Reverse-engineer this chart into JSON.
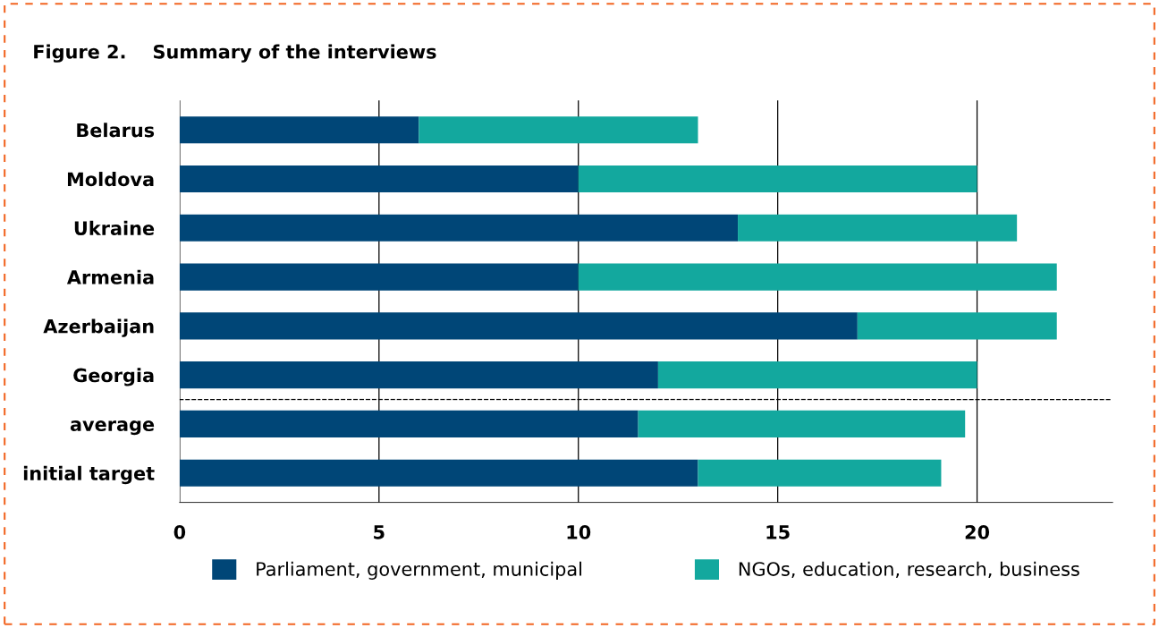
{
  "chart_data": {
    "type": "bar",
    "orientation": "horizontal",
    "stacked": true,
    "title": "Figure 2.    Summary of the interviews",
    "categories": [
      "Belarus",
      "Moldova",
      "Ukraine",
      "Armenia",
      "Azerbaijan",
      "Georgia",
      "average",
      "initial target"
    ],
    "series": [
      {
        "name": "Parliament, government, municipal",
        "color": "#004677",
        "values": [
          6,
          10,
          14,
          10,
          17,
          12,
          11.5,
          13
        ]
      },
      {
        "name": "NGOs, education, research, business",
        "color": "#13a89e",
        "values": [
          7,
          10,
          7,
          12,
          5,
          8,
          8.2,
          6.1
        ]
      }
    ],
    "xlim": [
      0,
      23.4
    ],
    "xticks": [
      0,
      5,
      10,
      15,
      20
    ],
    "grid": "x",
    "legend": "bottom"
  }
}
